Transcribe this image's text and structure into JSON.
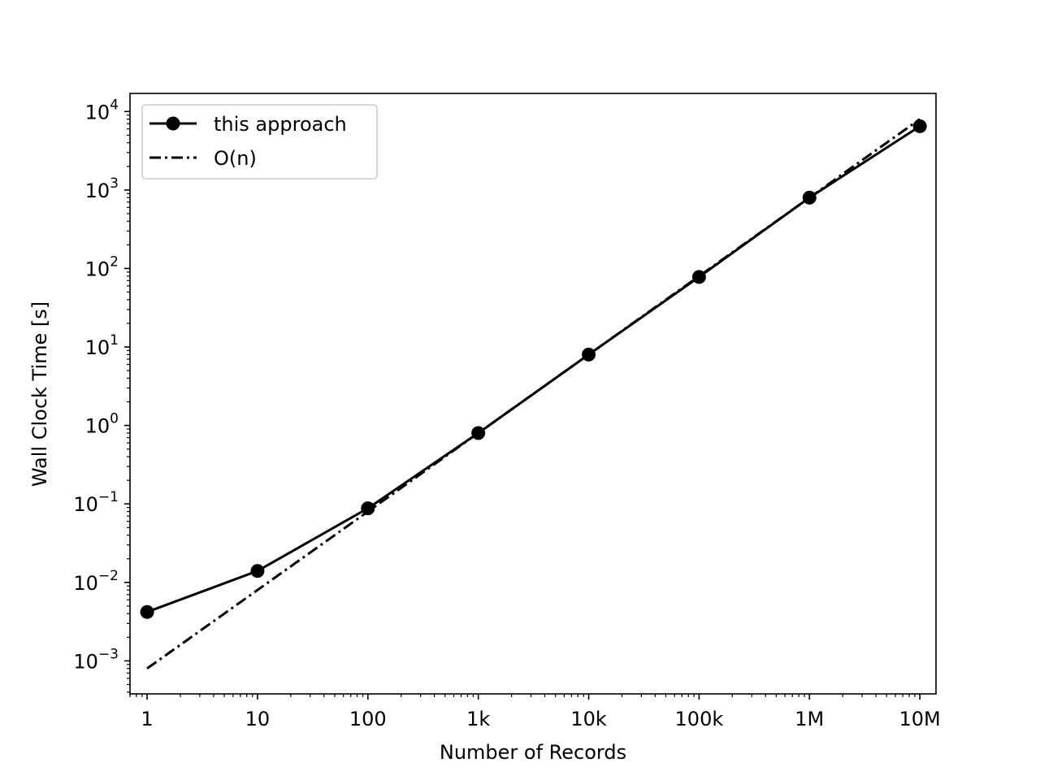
{
  "chart_data": {
    "type": "line",
    "xscale": "log",
    "yscale": "log",
    "xlabel": "Number of Records",
    "ylabel": "Wall Clock Time [s]",
    "xlim": [
      0.7,
      14000000
    ],
    "ylim": [
      0.00038,
      17000
    ],
    "x_ticks": [
      {
        "value": 1,
        "label": "1"
      },
      {
        "value": 10,
        "label": "10"
      },
      {
        "value": 100,
        "label": "100"
      },
      {
        "value": 1000,
        "label": "1k"
      },
      {
        "value": 10000,
        "label": "10k"
      },
      {
        "value": 100000,
        "label": "100k"
      },
      {
        "value": 1000000,
        "label": "1M"
      },
      {
        "value": 10000000,
        "label": "10M"
      }
    ],
    "y_ticks": [
      {
        "value": 0.001,
        "base": "10",
        "exp": "−3"
      },
      {
        "value": 0.01,
        "base": "10",
        "exp": "−2"
      },
      {
        "value": 0.1,
        "base": "10",
        "exp": "−1"
      },
      {
        "value": 1,
        "base": "10",
        "exp": "0"
      },
      {
        "value": 10,
        "base": "10",
        "exp": "1"
      },
      {
        "value": 100,
        "base": "10",
        "exp": "2"
      },
      {
        "value": 1000,
        "base": "10",
        "exp": "3"
      },
      {
        "value": 10000,
        "base": "10",
        "exp": "4"
      }
    ],
    "grid": false,
    "legend_position": "top-left",
    "series": [
      {
        "name": "this approach",
        "style": "solid",
        "marker": "circle",
        "color": "#000000",
        "x": [
          1,
          10,
          100,
          1000,
          10000,
          100000,
          1000000,
          10000000
        ],
        "y": [
          0.0042,
          0.014,
          0.088,
          0.8,
          8,
          78,
          800,
          6500
        ]
      },
      {
        "name": "O(n)",
        "style": "dashdot",
        "marker": "none",
        "color": "#000000",
        "x": [
          1,
          10000000
        ],
        "y": [
          0.0008,
          8000
        ]
      }
    ]
  }
}
